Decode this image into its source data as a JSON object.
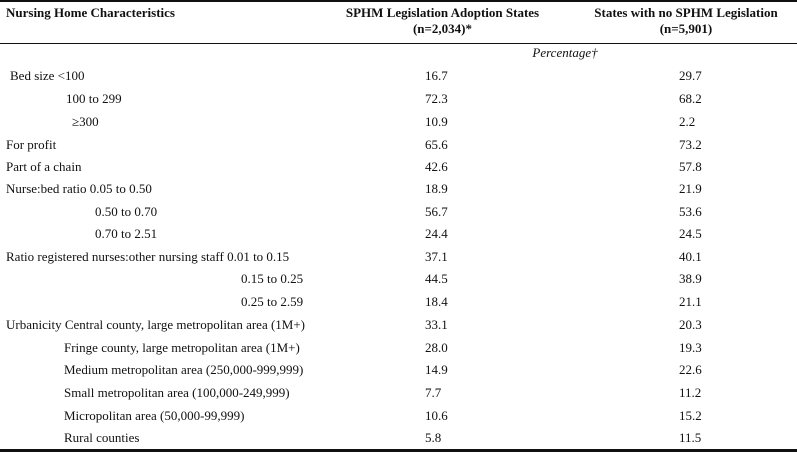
{
  "header": {
    "col1": "Nursing Home Characteristics",
    "col2_line1": "SPHM Legislation Adoption States",
    "col2_line2": "(n=2,034)*",
    "col3_line1": "States with no SPHM Legislation",
    "col3_line2": "(n=5,901)"
  },
  "subheader": "Percentage†",
  "rows": [
    {
      "label": "Bed size  <100",
      "v1": "16.7",
      "v2": "29.7"
    },
    {
      "label": "100 to 299",
      "v1": "72.3",
      "v2": "68.2"
    },
    {
      "label": "≥300",
      "v1": "10.9",
      "v2": "2.2"
    },
    {
      "label": "For profit",
      "v1": "65.6",
      "v2": "73.2"
    },
    {
      "label": "Part of a chain",
      "v1": "42.6",
      "v2": "57.8"
    },
    {
      "label": "Nurse:bed ratio 0.05 to 0.50",
      "v1": "18.9",
      "v2": "21.9"
    },
    {
      "label": "0.50 to 0.70",
      "v1": "56.7",
      "v2": "53.6"
    },
    {
      "label": "0.70 to 2.51",
      "v1": "24.4",
      "v2": "24.5"
    },
    {
      "label": "Ratio registered nurses:other nursing staff 0.01 to 0.15",
      "v1": "37.1",
      "v2": "40.1"
    },
    {
      "label": "0.15 to 0.25",
      "v1": "44.5",
      "v2": "38.9"
    },
    {
      "label": "0.25 to 2.59",
      "v1": "18.4",
      "v2": "21.1"
    },
    {
      "label": "Urbanicity Central county, large metropolitan area (1M+)",
      "v1": "33.1",
      "v2": "20.3"
    },
    {
      "label": "Fringe county, large metropolitan area (1M+)",
      "v1": "28.0",
      "v2": "19.3"
    },
    {
      "label": "Medium metropolitan area (250,000-999,999)",
      "v1": "14.9",
      "v2": "22.6"
    },
    {
      "label": "Small metropolitan area (100,000-249,999)",
      "v1": "7.7",
      "v2": "11.2"
    },
    {
      "label": "Micropolitan area (50,000-99,999)",
      "v1": "10.6",
      "v2": "15.2"
    },
    {
      "label": "Rural counties",
      "v1": "5.8",
      "v2": "11.5"
    }
  ]
}
